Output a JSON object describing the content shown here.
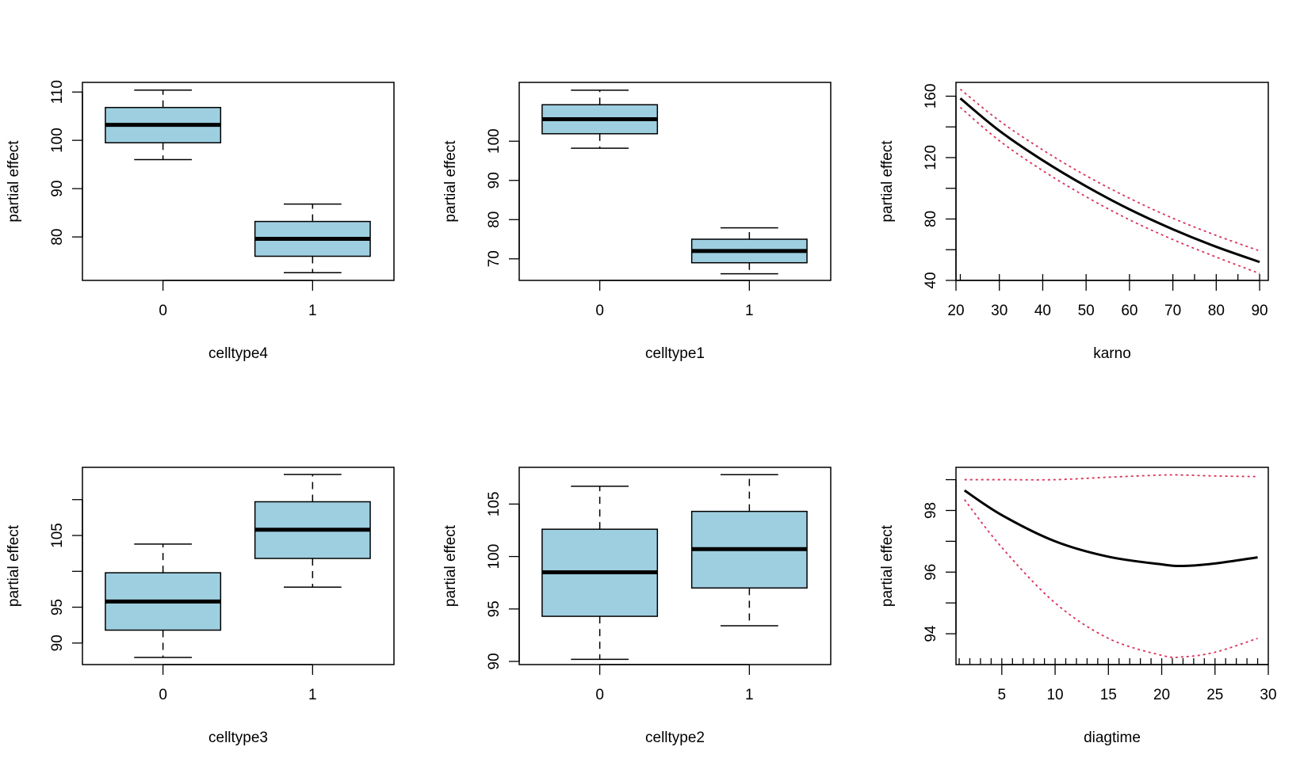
{
  "chart_data": [
    {
      "type": "boxplot",
      "xlabel": "celltype4",
      "ylabel": "partial effect",
      "ylim": [
        71,
        112
      ],
      "yticks": [
        80,
        90,
        100,
        110
      ],
      "categories": [
        "0",
        "1"
      ],
      "boxes": [
        {
          "min": 96,
          "q1": 99.5,
          "median": 103.2,
          "q3": 106.8,
          "max": 110.4
        },
        {
          "min": 72.6,
          "q1": 76,
          "median": 79.6,
          "q3": 83.2,
          "max": 86.8
        }
      ],
      "box_color": "#9ecfe0"
    },
    {
      "type": "boxplot",
      "xlabel": "celltype1",
      "ylabel": "partial effect",
      "ylim": [
        64.5,
        115
      ],
      "yticks": [
        70,
        80,
        90,
        100
      ],
      "categories": [
        "0",
        "1"
      ],
      "boxes": [
        {
          "min": 98.2,
          "q1": 101.9,
          "median": 105.6,
          "q3": 109.3,
          "max": 113
        },
        {
          "min": 66.2,
          "q1": 69,
          "median": 72,
          "q3": 75,
          "max": 77.9
        }
      ],
      "box_color": "#9ecfe0"
    },
    {
      "type": "line",
      "xlabel": "karno",
      "ylabel": "partial effect",
      "xlim": [
        20,
        92
      ],
      "ylim": [
        40,
        169
      ],
      "xticks": [
        20,
        30,
        40,
        50,
        60,
        70,
        80,
        90
      ],
      "yticks": [
        40,
        80,
        120,
        160
      ],
      "ytick_minor": [
        60,
        100,
        140
      ],
      "x": [
        21,
        30,
        40,
        50,
        60,
        70,
        80,
        90
      ],
      "series": [
        {
          "values": [
            158.6,
            137.5,
            118.2,
            101.3,
            86.3,
            73.3,
            61.9,
            52
          ],
          "style": "solid",
          "color": "#000000"
        },
        {
          "values": [
            164.5,
            144,
            125,
            108.2,
            93.5,
            80.5,
            69.3,
            59.2
          ],
          "style": "dotted",
          "color": "#d9325a"
        },
        {
          "values": [
            152.7,
            131,
            111.5,
            94.5,
            79.5,
            66.6,
            55.2,
            44.5
          ],
          "style": "dotted",
          "color": "#d9325a"
        }
      ],
      "rug": [
        21,
        30,
        40,
        50,
        60,
        70,
        75,
        80,
        85,
        90
      ]
    },
    {
      "type": "boxplot",
      "xlabel": "celltype3",
      "ylabel": "partial effect",
      "ylim": [
        87,
        114.5
      ],
      "yticks": [
        90,
        95,
        105
      ],
      "ytick_minor": [
        100,
        110
      ],
      "categories": [
        "0",
        "1"
      ],
      "boxes": [
        {
          "min": 88,
          "q1": 91.8,
          "median": 95.8,
          "q3": 99.8,
          "max": 103.8
        },
        {
          "min": 97.8,
          "q1": 101.8,
          "median": 105.8,
          "q3": 109.7,
          "max": 113.5
        }
      ],
      "box_color": "#9ecfe0"
    },
    {
      "type": "boxplot",
      "xlabel": "celltype2",
      "ylabel": "partial effect",
      "ylim": [
        89.7,
        108.5
      ],
      "yticks": [
        90,
        95,
        100,
        105
      ],
      "categories": [
        "0",
        "1"
      ],
      "boxes": [
        {
          "min": 90.2,
          "q1": 94.3,
          "median": 98.5,
          "q3": 102.6,
          "max": 106.7
        },
        {
          "min": 93.4,
          "q1": 97,
          "median": 100.7,
          "q3": 104.3,
          "max": 107.8
        }
      ],
      "box_color": "#9ecfe0"
    },
    {
      "type": "line",
      "xlabel": "diagtime",
      "ylabel": "partial effect",
      "xlim": [
        0.7,
        30
      ],
      "ylim": [
        93,
        99.4
      ],
      "xticks": [
        5,
        10,
        15,
        20,
        25,
        30
      ],
      "yticks": [
        94,
        96,
        98
      ],
      "ytick_minor": [
        95,
        97,
        99
      ],
      "x": [
        1.5,
        5,
        10,
        15,
        20,
        22,
        25,
        29
      ],
      "series": [
        {
          "values": [
            98.65,
            97.85,
            97.0,
            96.5,
            96.25,
            96.2,
            96.28,
            96.48
          ],
          "style": "solid",
          "color": "#000000"
        },
        {
          "values": [
            99.0,
            99.0,
            99.0,
            99.08,
            99.15,
            99.15,
            99.12,
            99.1
          ],
          "style": "dotted",
          "color": "#d9325a"
        },
        {
          "values": [
            98.35,
            96.8,
            95.0,
            93.85,
            93.3,
            93.25,
            93.4,
            93.85
          ],
          "style": "dotted",
          "color": "#d9325a"
        }
      ],
      "rug": [
        1,
        2,
        3,
        4,
        5,
        6,
        7,
        8,
        9,
        10,
        11,
        12,
        13,
        14,
        15,
        16,
        17,
        18,
        19,
        20,
        21,
        22,
        23,
        24,
        25,
        26,
        27,
        28,
        29
      ]
    }
  ]
}
